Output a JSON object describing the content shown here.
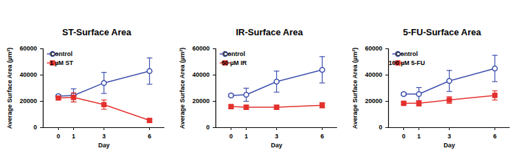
{
  "chart_data": [
    {
      "type": "line",
      "title": "ST-Surface Area",
      "x_label": "Day",
      "y_label": "Average Surface Area (µm²)",
      "x": [
        0,
        1,
        3,
        6
      ],
      "xlim": [
        -1,
        7
      ],
      "xticks": [
        0,
        1,
        3,
        6
      ],
      "ylim": [
        0,
        60000
      ],
      "yticks": [
        0,
        20000,
        40000,
        60000
      ],
      "grid": false,
      "legend": "upper left",
      "series": [
        {
          "name": "Control",
          "color": "#3c4fad",
          "marker": "open_circle",
          "values": [
            24000,
            24500,
            34000,
            43000
          ],
          "errors": [
            1000,
            5000,
            8000,
            10000
          ]
        },
        {
          "name": "1 µM ST",
          "color": "#e3302d",
          "marker": "square",
          "values": [
            22500,
            23000,
            17500,
            5500
          ],
          "errors": [
            1000,
            3500,
            3500,
            1000
          ]
        }
      ]
    },
    {
      "type": "line",
      "title": "IR-Surface Area",
      "x_label": "Day",
      "y_label": "Average Surface Area (µm²)",
      "x": [
        0,
        1,
        3,
        6
      ],
      "xlim": [
        -1,
        7
      ],
      "xticks": [
        0,
        1,
        3,
        6
      ],
      "ylim": [
        0,
        60000
      ],
      "yticks": [
        0,
        20000,
        40000,
        60000
      ],
      "grid": false,
      "legend": "upper left",
      "series": [
        {
          "name": "Control",
          "color": "#3c4fad",
          "marker": "open_circle",
          "values": [
            24500,
            25000,
            35000,
            44000
          ],
          "errors": [
            1000,
            5000,
            8000,
            10000
          ]
        },
        {
          "name": "50 µM IR",
          "color": "#e3302d",
          "marker": "square",
          "values": [
            16000,
            15500,
            15500,
            17000
          ],
          "errors": [
            1000,
            1500,
            1500,
            2000
          ]
        }
      ]
    },
    {
      "type": "line",
      "title": "5-FU-Surface Area",
      "x_label": "Day",
      "y_label": "Average Surface Area (µm²)",
      "x": [
        0,
        1,
        3,
        6
      ],
      "xlim": [
        -1,
        7
      ],
      "xticks": [
        0,
        1,
        3,
        6
      ],
      "ylim": [
        0,
        60000
      ],
      "yticks": [
        0,
        20000,
        40000,
        60000
      ],
      "grid": false,
      "legend": "upper left",
      "series": [
        {
          "name": "Control",
          "color": "#3c4fad",
          "marker": "open_circle",
          "values": [
            25500,
            25500,
            35500,
            45000
          ],
          "errors": [
            1000,
            5000,
            8000,
            10000
          ]
        },
        {
          "name": "100 µM 5-FU",
          "color": "#e3302d",
          "marker": "square",
          "values": [
            18500,
            18500,
            21000,
            24500
          ],
          "errors": [
            1000,
            2000,
            2500,
            3500
          ]
        }
      ]
    }
  ]
}
